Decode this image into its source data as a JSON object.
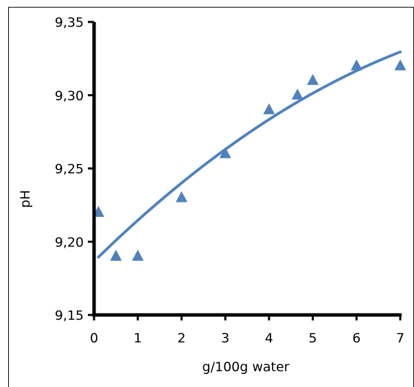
{
  "chart_data": {
    "type": "scatter",
    "xlabel": "g/100g water",
    "ylabel": "pH",
    "xlim": [
      0,
      7
    ],
    "ylim": [
      9.15,
      9.35
    ],
    "x_ticks": [
      0,
      1,
      2,
      3,
      4,
      5,
      6,
      7
    ],
    "y_ticks": [
      9.15,
      9.2,
      9.25,
      9.3,
      9.35
    ],
    "x_tick_labels": [
      "0",
      "1",
      "2",
      "3",
      "4",
      "5",
      "6",
      "7"
    ],
    "y_tick_labels": [
      "9,15",
      "9,20",
      "9,25",
      "9,30",
      "9,35"
    ],
    "grid": false,
    "legend": "none",
    "series": [
      {
        "marker": "triangle",
        "color": "#4f81bd",
        "points": [
          {
            "x": 0.1,
            "y": 9.22
          },
          {
            "x": 0.5,
            "y": 9.19
          },
          {
            "x": 1.0,
            "y": 9.19
          },
          {
            "x": 2.0,
            "y": 9.23
          },
          {
            "x": 3.0,
            "y": 9.26
          },
          {
            "x": 4.0,
            "y": 9.29
          },
          {
            "x": 4.65,
            "y": 9.3
          },
          {
            "x": 5.0,
            "y": 9.31
          },
          {
            "x": 6.0,
            "y": 9.32
          },
          {
            "x": 7.0,
            "y": 9.32
          }
        ]
      }
    ],
    "trendline": {
      "type": "polynomial-2",
      "color": "#4f81bd",
      "x_range": [
        0.1,
        7.0
      ],
      "coefficients": [
        9.1866,
        0.02926,
        -0.001263
      ]
    }
  }
}
